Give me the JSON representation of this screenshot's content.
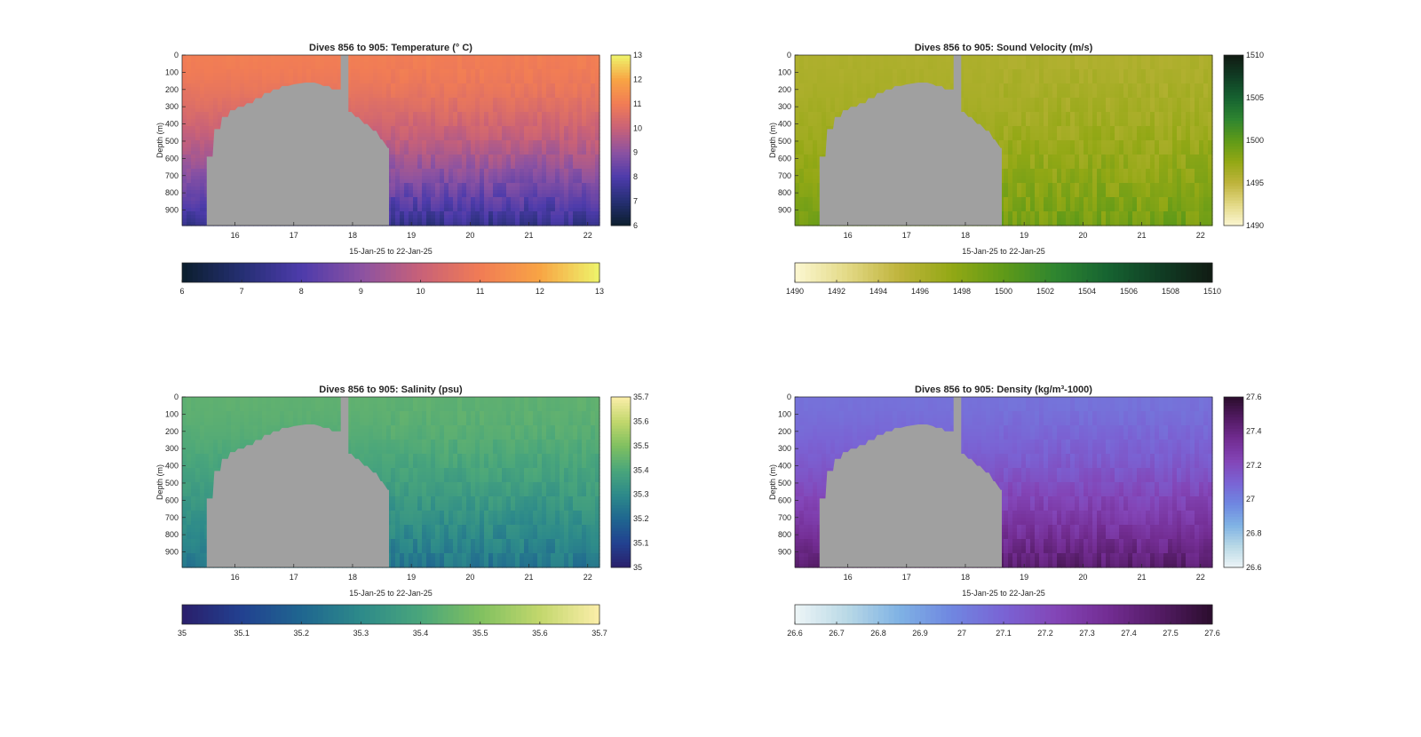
{
  "figure": {
    "background": "#ffffff",
    "mask_color": "#a0a0a0"
  },
  "chart_data": [
    {
      "type": "heatmap",
      "title": "Dives 856 to 905: Temperature (° C)",
      "xlabel": "15-Jan-25 to 22-Jan-25",
      "ylabel": "Depth (m)",
      "xlim": [
        15.1,
        22.2
      ],
      "ylim": [
        0,
        990
      ],
      "y_reversed": true,
      "xticks": [
        "16",
        "17",
        "18",
        "19",
        "20",
        "21",
        "22"
      ],
      "yticks": [
        "0",
        "100",
        "200",
        "300",
        "400",
        "500",
        "600",
        "700",
        "800",
        "900"
      ],
      "colorbar_ticks": [
        "6",
        "7",
        "8",
        "9",
        "10",
        "11",
        "12",
        "13"
      ],
      "clim": [
        6,
        13
      ],
      "colormap": [
        "#0b1e2d",
        "#252f73",
        "#4d3bab",
        "#8b52a2",
        "#c86178",
        "#f17c55",
        "#f8a444",
        "#eef46b"
      ],
      "surface_value": 11.05,
      "bottom_value": 7.4,
      "profile_drift": 0.0
    },
    {
      "type": "heatmap",
      "title": "Dives 856 to 905: Sound Velocity (m/s)",
      "xlabel": "15-Jan-25 to 22-Jan-25",
      "ylabel": "Depth (m)",
      "xlim": [
        15.1,
        22.2
      ],
      "ylim": [
        0,
        990
      ],
      "y_reversed": true,
      "xticks": [
        "16",
        "17",
        "18",
        "19",
        "20",
        "21",
        "22"
      ],
      "yticks": [
        "0",
        "100",
        "200",
        "300",
        "400",
        "500",
        "600",
        "700",
        "800",
        "900"
      ],
      "colorbar_ticks": [
        "1490",
        "1495",
        "1500",
        "1505",
        "1510"
      ],
      "colorbar_h_ticks": [
        "1490",
        "1492",
        "1494",
        "1496",
        "1498",
        "1500",
        "1502",
        "1504",
        "1506",
        "1508",
        "1510"
      ],
      "clim": [
        1490,
        1510
      ],
      "colormap": [
        "#fcf7d2",
        "#e3d986",
        "#bfb43c",
        "#93a815",
        "#5f9a18",
        "#2e8530",
        "#166331",
        "#103d24",
        "#111b13"
      ],
      "surface_value": 1496.0,
      "bottom_value": 1499.0,
      "profile_drift": 0.0
    },
    {
      "type": "heatmap",
      "title": "Dives 856 to 905: Salinity (psu)",
      "xlabel": "15-Jan-25 to 22-Jan-25",
      "ylabel": "Depth (m)",
      "xlim": [
        15.1,
        22.2
      ],
      "ylim": [
        0,
        990
      ],
      "y_reversed": true,
      "xticks": [
        "16",
        "17",
        "18",
        "19",
        "20",
        "21",
        "22"
      ],
      "yticks": [
        "0",
        "100",
        "200",
        "300",
        "400",
        "500",
        "600",
        "700",
        "800",
        "900"
      ],
      "colorbar_ticks": [
        "35",
        "35.1",
        "35.2",
        "35.3",
        "35.4",
        "35.5",
        "35.6",
        "35.7"
      ],
      "clim": [
        35,
        35.7
      ],
      "colormap": [
        "#2a1f6b",
        "#224190",
        "#1f6690",
        "#2d8a8a",
        "#4aa67b",
        "#80c060",
        "#c2d76c",
        "#fbeea9"
      ],
      "surface_value": 35.44,
      "bottom_value": 35.24,
      "profile_drift": 0.0
    },
    {
      "type": "heatmap",
      "title": "Dives 856 to 905: Density (kg/m³-1000)",
      "xlabel": "15-Jan-25 to 22-Jan-25",
      "ylabel": "Depth (m)",
      "xlim": [
        15.1,
        22.2
      ],
      "ylim": [
        0,
        990
      ],
      "y_reversed": true,
      "xticks": [
        "16",
        "17",
        "18",
        "19",
        "20",
        "21",
        "22"
      ],
      "yticks": [
        "0",
        "100",
        "200",
        "300",
        "400",
        "500",
        "600",
        "700",
        "800",
        "900"
      ],
      "colorbar_ticks": [
        "26.6",
        "26.8",
        "27",
        "27.2",
        "27.4",
        "27.6"
      ],
      "colorbar_h_ticks": [
        "26.6",
        "26.7",
        "26.8",
        "26.9",
        "27",
        "27.1",
        "27.2",
        "27.3",
        "27.4",
        "27.5",
        "27.6"
      ],
      "clim": [
        26.6,
        27.6
      ],
      "colormap": [
        "#eef5f7",
        "#b9d9e6",
        "#7fb2e4",
        "#6f87e1",
        "#7a63d4",
        "#8345b7",
        "#732d93",
        "#531b64",
        "#2b0d2d"
      ],
      "surface_value": 27.05,
      "bottom_value": 27.45,
      "profile_drift": 0.0
    }
  ],
  "mask": {
    "description": "gray masked area (no data), depth of top edge by day",
    "x": [
      15.52,
      15.52,
      15.62,
      15.65,
      15.75,
      15.78,
      15.88,
      15.92,
      16.0,
      16.05,
      16.15,
      16.2,
      16.3,
      16.35,
      16.45,
      16.5,
      16.6,
      16.65,
      16.75,
      16.8,
      16.9,
      17.0,
      17.2,
      17.35,
      17.45,
      17.5,
      17.6,
      17.65,
      17.75,
      17.8,
      17.8,
      17.93,
      17.93,
      17.98,
      18.05,
      18.1,
      18.2,
      18.25,
      18.35,
      18.4,
      18.48,
      18.5,
      18.6,
      18.62,
      18.62
    ],
    "top": [
      990,
      590,
      590,
      430,
      430,
      360,
      360,
      320,
      320,
      300,
      300,
      280,
      280,
      250,
      250,
      220,
      220,
      200,
      200,
      180,
      180,
      170,
      160,
      160,
      170,
      180,
      180,
      200,
      200,
      200,
      0,
      0,
      330,
      330,
      360,
      360,
      400,
      400,
      440,
      440,
      490,
      490,
      540,
      540,
      990
    ],
    "gap_top_x": [
      17.8,
      17.93
    ]
  }
}
